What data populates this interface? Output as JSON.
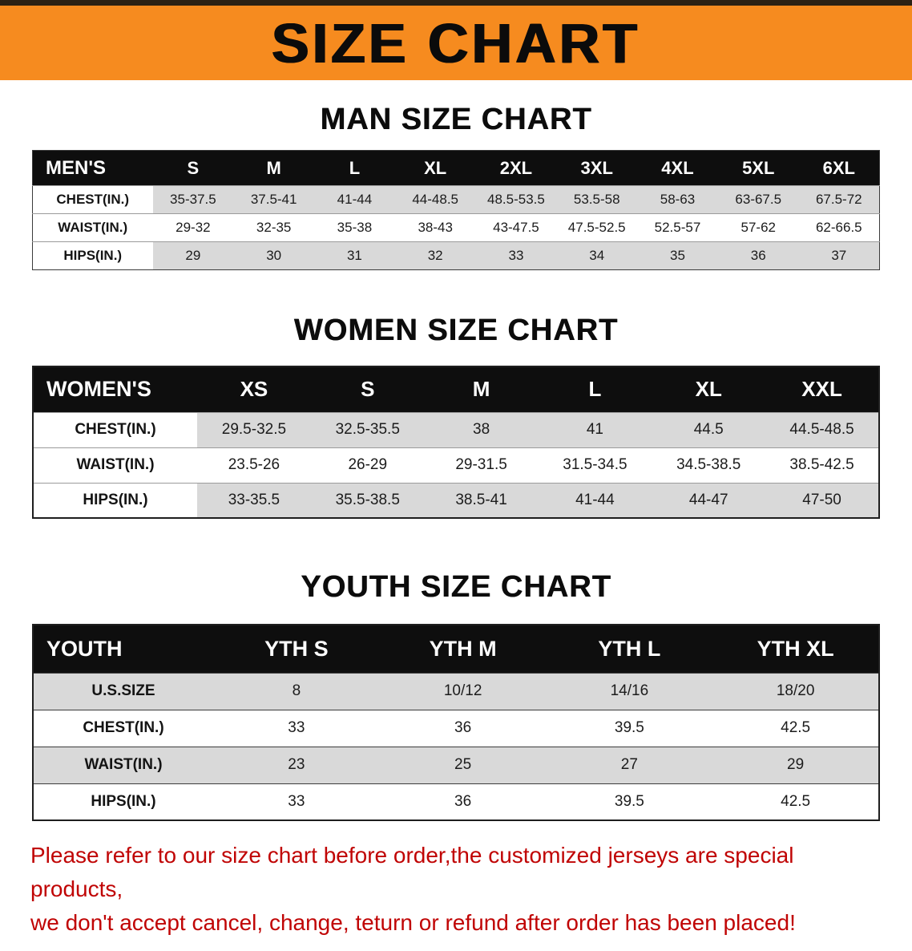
{
  "banner": {
    "title": "SIZE CHART"
  },
  "colors": {
    "banner_bg": "#f68b1f",
    "table_header_bg": "#0e0e0e",
    "table_header_text": "#ffffff",
    "row_stripe": "#d9d9d9",
    "notice_text": "#c00404"
  },
  "sections": [
    {
      "id": "man",
      "heading": "MAN SIZE CHART",
      "table": {
        "header": [
          "MEN'S",
          "S",
          "M",
          "L",
          "XL",
          "2XL",
          "3XL",
          "4XL",
          "5XL",
          "6XL"
        ],
        "rows": [
          [
            "CHEST(IN.)",
            "35-37.5",
            "37.5-41",
            "41-44",
            "44-48.5",
            "48.5-53.5",
            "53.5-58",
            "58-63",
            "63-67.5",
            "67.5-72"
          ],
          [
            "WAIST(IN.)",
            "29-32",
            "32-35",
            "35-38",
            "38-43",
            "43-47.5",
            "47.5-52.5",
            "52.5-57",
            "57-62",
            "62-66.5"
          ],
          [
            "HIPS(IN.)",
            "29",
            "30",
            "31",
            "32",
            "33",
            "34",
            "35",
            "36",
            "37"
          ]
        ]
      }
    },
    {
      "id": "women",
      "heading": "WOMEN SIZE CHART",
      "table": {
        "header": [
          "WOMEN'S",
          "XS",
          "S",
          "M",
          "L",
          "XL",
          "XXL"
        ],
        "rows": [
          [
            "CHEST(IN.)",
            "29.5-32.5",
            "32.5-35.5",
            "38",
            "41",
            "44.5",
            "44.5-48.5"
          ],
          [
            "WAIST(IN.)",
            "23.5-26",
            "26-29",
            "29-31.5",
            "31.5-34.5",
            "34.5-38.5",
            "38.5-42.5"
          ],
          [
            "HIPS(IN.)",
            "33-35.5",
            "35.5-38.5",
            "38.5-41",
            "41-44",
            "44-47",
            "47-50"
          ]
        ]
      }
    },
    {
      "id": "youth",
      "heading": "YOUTH SIZE CHART",
      "table": {
        "header": [
          "YOUTH",
          "YTH S",
          "YTH M",
          "YTH L",
          "YTH XL"
        ],
        "rows": [
          [
            "U.S.SIZE",
            "8",
            "10/12",
            "14/16",
            "18/20"
          ],
          [
            "CHEST(IN.)",
            "33",
            "36",
            "39.5",
            "42.5"
          ],
          [
            "WAIST(IN.)",
            "23",
            "25",
            "27",
            "29"
          ],
          [
            "HIPS(IN.)",
            "33",
            "36",
            "39.5",
            "42.5"
          ]
        ]
      }
    }
  ],
  "footer": {
    "line1": "Please refer to our size chart before order,the customized jerseys are special products,",
    "line2": "we don't accept cancel, change, teturn or refund after order has been placed!"
  }
}
